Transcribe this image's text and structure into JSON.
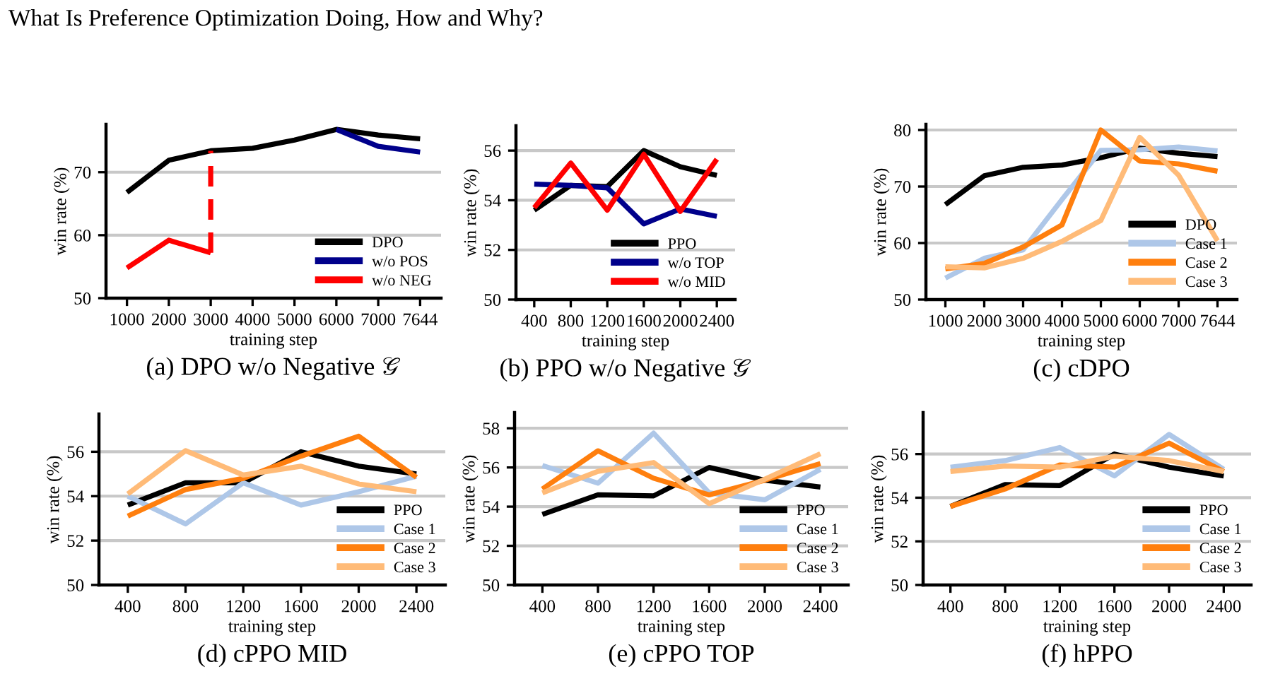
{
  "chart_data": [
    {
      "type": "line",
      "title": "(a) DPO w/o Negative 𝒢",
      "xlabel": "training step",
      "ylabel": "win rate (%)",
      "annotations": [
        "What Is Preference Optimization Doing, How and Why?"
      ],
      "categories": [
        "1000",
        "2000",
        "3000",
        "4000",
        "5000",
        "6000",
        "7000",
        "7644"
      ],
      "ylim": [
        50,
        77.6
      ],
      "yticks": [
        50,
        60,
        70
      ],
      "grid": "y",
      "legend": "bottom right",
      "line_style": "solid",
      "series": [
        {
          "name": "DPO",
          "color": "#000000",
          "values": [
            66.8,
            71.9,
            73.4,
            73.8,
            75.1,
            76.8,
            75.9,
            75.3
          ]
        },
        {
          "name": "w/o POS",
          "color": "#00008b",
          "values": [
            null,
            null,
            null,
            null,
            null,
            76.8,
            74.1,
            73.2
          ]
        },
        {
          "name": "w/o NEG",
          "color": "#ff0000",
          "values": [
            54.8,
            59.2,
            57.2,
            null,
            null,
            null,
            null,
            null
          ],
          "errors": [
            null,
            null,
            [
              57.2,
              73.4
            ],
            null,
            null,
            null,
            null,
            null
          ]
        }
      ]
    },
    {
      "type": "line",
      "title": "(b) PPO w/o Negative 𝒢",
      "xlabel": "training step",
      "ylabel": "win rate (%)",
      "categories": [
        "400",
        "800",
        "1200",
        "1600",
        "2000",
        "2400"
      ],
      "ylim": [
        50,
        57
      ],
      "yticks": [
        50,
        52,
        54,
        56
      ],
      "grid": "y",
      "legend": "bottom right",
      "line_style": "solid",
      "series": [
        {
          "name": "PPO",
          "color": "#000000",
          "values": [
            53.6,
            54.6,
            54.55,
            56.0,
            55.35,
            55.0
          ]
        },
        {
          "name": "w/o TOP",
          "color": "#00008b",
          "values": [
            54.65,
            54.6,
            54.5,
            53.05,
            53.65,
            53.35
          ]
        },
        {
          "name": "w/o MID",
          "color": "#ff0000",
          "values": [
            53.7,
            55.5,
            53.6,
            55.85,
            53.55,
            55.65
          ]
        }
      ]
    },
    {
      "type": "line",
      "title": "(c) cDPO",
      "xlabel": "training step",
      "ylabel": "win rate (%)",
      "categories": [
        "1000",
        "2000",
        "3000",
        "4000",
        "5000",
        "6000",
        "7000",
        "7644"
      ],
      "ylim": [
        50,
        81
      ],
      "yticks": [
        50,
        60,
        70,
        80
      ],
      "grid": "y",
      "legend": "bottom right",
      "line_style": "solid",
      "series": [
        {
          "name": "DPO",
          "color": "#000000",
          "values": [
            66.8,
            71.9,
            73.4,
            73.8,
            75.1,
            76.8,
            75.9,
            75.3
          ]
        },
        {
          "name": "Case 1",
          "color": "#aec7e8",
          "values": [
            53.8,
            57.3,
            58.8,
            67.7,
            76.4,
            76.5,
            77.0,
            76.3
          ]
        },
        {
          "name": "Case 2",
          "color": "#ff7f0e",
          "values": [
            55.4,
            56.4,
            59.3,
            63.2,
            80.0,
            74.5,
            74.0,
            72.7
          ]
        },
        {
          "name": "Case 3",
          "color": "#ffbb78",
          "values": [
            55.8,
            55.6,
            57.3,
            60.3,
            64.0,
            78.7,
            72.0,
            60.4
          ]
        }
      ]
    },
    {
      "type": "line",
      "title": "(d) cPPO MID",
      "xlabel": "training step",
      "ylabel": "win rate (%)",
      "categories": [
        "400",
        "800",
        "1200",
        "1600",
        "2000",
        "2400"
      ],
      "ylim": [
        50,
        57.7
      ],
      "yticks": [
        50,
        52,
        54,
        56
      ],
      "grid": "y",
      "legend": "bottom right",
      "line_style": "solid",
      "series": [
        {
          "name": "PPO",
          "color": "#000000",
          "values": [
            53.6,
            54.6,
            54.6,
            56.0,
            55.35,
            55.0
          ]
        },
        {
          "name": "Case 1",
          "color": "#aec7e8",
          "values": [
            54.0,
            52.75,
            54.6,
            53.6,
            54.2,
            54.9
          ]
        },
        {
          "name": "Case 2",
          "color": "#ff7f0e",
          "values": [
            53.1,
            54.3,
            54.8,
            55.8,
            56.7,
            54.85
          ]
        },
        {
          "name": "Case 3",
          "color": "#ffbb78",
          "values": [
            54.1,
            56.05,
            54.95,
            55.35,
            54.55,
            54.2
          ]
        }
      ]
    },
    {
      "type": "line",
      "title": "(e) cPPO TOP",
      "xlabel": "training step",
      "ylabel": "win rate (%)",
      "categories": [
        "400",
        "800",
        "1200",
        "1600",
        "2000",
        "2400"
      ],
      "ylim": [
        50,
        58.8
      ],
      "yticks": [
        50,
        52,
        54,
        56,
        58
      ],
      "grid": "y",
      "legend": "bottom right",
      "line_style": "solid",
      "series": [
        {
          "name": "PPO",
          "color": "#000000",
          "values": [
            53.6,
            54.6,
            54.55,
            56.0,
            55.35,
            55.0
          ]
        },
        {
          "name": "Case 1",
          "color": "#aec7e8",
          "values": [
            56.1,
            55.2,
            57.75,
            54.7,
            54.35,
            55.9
          ]
        },
        {
          "name": "Case 2",
          "color": "#ff7f0e",
          "values": [
            54.9,
            56.85,
            55.45,
            54.6,
            55.35,
            56.2
          ]
        },
        {
          "name": "Case 3",
          "color": "#ffbb78",
          "values": [
            54.7,
            55.8,
            56.25,
            54.15,
            55.4,
            56.7
          ]
        }
      ]
    },
    {
      "type": "line",
      "title": "(f) hPPO",
      "xlabel": "training step",
      "ylabel": "win rate (%)",
      "categories": [
        "400",
        "800",
        "1200",
        "1600",
        "2000",
        "2400"
      ],
      "ylim": [
        50,
        57.9
      ],
      "yticks": [
        50,
        52,
        54,
        56
      ],
      "grid": "y",
      "legend": "bottom right",
      "line_style": "solid",
      "series": [
        {
          "name": "PPO",
          "color": "#000000",
          "values": [
            53.6,
            54.6,
            54.55,
            56.0,
            55.4,
            55.0
          ]
        },
        {
          "name": "Case 1",
          "color": "#aec7e8",
          "values": [
            55.4,
            55.7,
            56.3,
            55.0,
            56.9,
            55.3
          ]
        },
        {
          "name": "Case 2",
          "color": "#ff7f0e",
          "values": [
            53.6,
            54.4,
            55.5,
            55.4,
            56.5,
            55.2
          ]
        },
        {
          "name": "Case 3",
          "color": "#ffbb78",
          "values": [
            55.2,
            55.45,
            55.4,
            55.9,
            55.7,
            55.2
          ]
        }
      ]
    }
  ]
}
